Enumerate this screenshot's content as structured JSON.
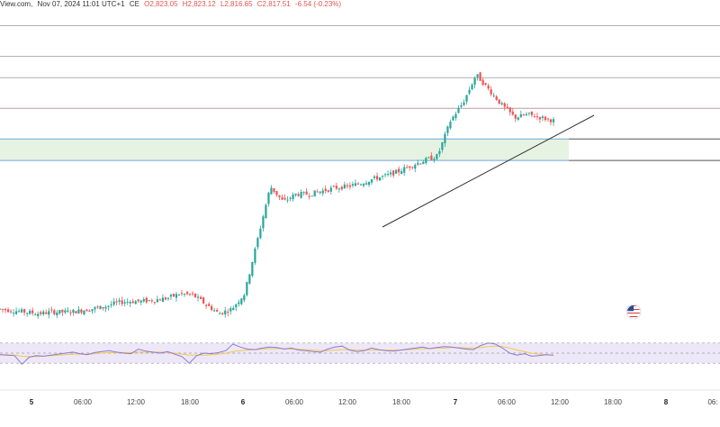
{
  "header": {
    "source": "View.com,",
    "datetime": "Nov 07, 2024 11:01 UTC+1",
    "series_code": "CE",
    "open": "O2,823.05",
    "high": "H2,823.12",
    "low": "L2,816.65",
    "close": "C2,817.51",
    "change": "-6.54 (-0.23%)"
  },
  "colors": {
    "up": "#26a69a",
    "down": "#ef5350",
    "zone_fill": "#e6f3e2",
    "zone_border": "#6fa8dc",
    "resistance_line": "#c59a9a",
    "level_line": "#b0b0b0",
    "rsi_bg": "#ede8f8",
    "rsi_line": "#8c7ad1",
    "rsi_ma": "#f2c94c",
    "trendline": "#333333"
  },
  "chart_data": [
    {
      "type": "line",
      "title": "",
      "description_of_marks": "candlestick price series",
      "x_ticks": [
        "5",
        "06:00",
        "12:00",
        "18:00",
        "6",
        "06:00",
        "12:00",
        "18:00",
        "7",
        "06:00",
        "12:00",
        "18:00",
        "8",
        "06:"
      ],
      "close_path": [
        [
          0,
          2715
        ],
        [
          6,
          2714
        ],
        [
          12,
          2713
        ],
        [
          18,
          2712
        ],
        [
          24,
          2713
        ],
        [
          30,
          2713
        ],
        [
          36,
          2713.5
        ],
        [
          42,
          2715
        ],
        [
          48,
          2716
        ],
        [
          54,
          2719
        ],
        [
          60,
          2720
        ],
        [
          66,
          2720
        ],
        [
          72,
          2721
        ],
        [
          78,
          2722
        ],
        [
          84,
          2725
        ],
        [
          90,
          2724
        ],
        [
          96,
          2718
        ],
        [
          102,
          2712
        ],
        [
          108,
          2715
        ],
        [
          114,
          2725
        ],
        [
          120,
          2760
        ],
        [
          126,
          2795
        ],
        [
          132,
          2785
        ],
        [
          138,
          2790
        ],
        [
          144,
          2790
        ],
        [
          150,
          2792
        ],
        [
          156,
          2794
        ],
        [
          162,
          2795
        ],
        [
          168,
          2797
        ],
        [
          174,
          2800
        ],
        [
          180,
          2802
        ],
        [
          186,
          2805
        ],
        [
          192,
          2809
        ],
        [
          198,
          2812
        ],
        [
          204,
          2815
        ],
        [
          210,
          2838
        ],
        [
          216,
          2850
        ],
        [
          222,
          2868
        ],
        [
          228,
          2858
        ],
        [
          234,
          2848
        ],
        [
          240,
          2840
        ],
        [
          246,
          2842
        ],
        [
          252,
          2840
        ],
        [
          258,
          2838
        ]
      ],
      "resistance_level": 2846,
      "support_zone": [
        2812,
        2826
      ],
      "upper_levels": [
        2900,
        2880,
        2866
      ],
      "lower_level": 2826
    },
    {
      "type": "line",
      "title": "",
      "description_of_marks": "RSI oscillator with moving average",
      "ylim": [
        0,
        100
      ],
      "band": [
        30,
        70
      ],
      "rsi": [
        47,
        46,
        45,
        28,
        42,
        45,
        44,
        46,
        48,
        50,
        52,
        49,
        47,
        51,
        53,
        55,
        52,
        50,
        49,
        58,
        54,
        52,
        50,
        53,
        48,
        43,
        30,
        45,
        50,
        49,
        51,
        55,
        68,
        62,
        58,
        57,
        60,
        62,
        61,
        58,
        60,
        56,
        55,
        53,
        52,
        58,
        62,
        64,
        56,
        53,
        55,
        60,
        57,
        55,
        54,
        56,
        58,
        60,
        62,
        59,
        61,
        63,
        62,
        60,
        58,
        57,
        65,
        70,
        68,
        60,
        50,
        46,
        49,
        44,
        45,
        47,
        46
      ],
      "rsi_ma": [
        47,
        47,
        46,
        44,
        43,
        43,
        44,
        45,
        46,
        47,
        48,
        48,
        48,
        49,
        50,
        51,
        51,
        51,
        51,
        52,
        52,
        52,
        52,
        51,
        50,
        48,
        46,
        46,
        46,
        47,
        48,
        50,
        53,
        55,
        56,
        57,
        58,
        59,
        59,
        59,
        58,
        58,
        57,
        56,
        55,
        55,
        56,
        57,
        57,
        56,
        56,
        56,
        56,
        56,
        56,
        56,
        57,
        58,
        59,
        59,
        60,
        60,
        61,
        61,
        60,
        60,
        61,
        63,
        64,
        63,
        60,
        56,
        53,
        50,
        48,
        47,
        46
      ]
    }
  ]
}
